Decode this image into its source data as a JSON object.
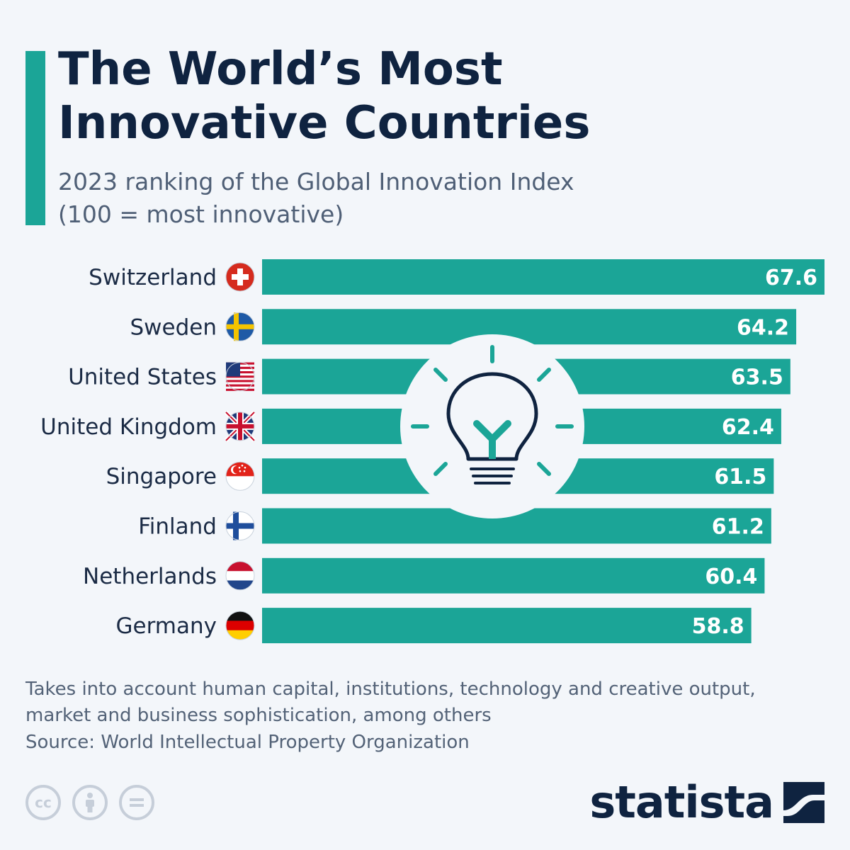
{
  "header": {
    "title_line1": "The World’s Most",
    "title_line2": "Innovative Countries",
    "subtitle_line1": "2023 ranking of the Global Innovation Index",
    "subtitle_line2": "(100 = most innovative)"
  },
  "chart_data": {
    "type": "bar",
    "orientation": "horizontal",
    "categories": [
      "Switzerland",
      "Sweden",
      "United States",
      "United Kingdom",
      "Singapore",
      "Finland",
      "Netherlands",
      "Germany"
    ],
    "values": [
      67.6,
      64.2,
      63.5,
      62.4,
      61.5,
      61.2,
      60.4,
      58.8
    ],
    "value_labels": [
      "67.6",
      "64.2",
      "63.5",
      "62.4",
      "61.5",
      "61.2",
      "60.4",
      "58.8"
    ],
    "xlim": [
      0,
      67.6
    ],
    "grid": false,
    "legend": "none",
    "flags": [
      "switzerland",
      "sweden",
      "united-states",
      "united-kingdom",
      "singapore",
      "finland",
      "netherlands",
      "germany"
    ]
  },
  "decoration": {
    "icon": "lightbulb-icon"
  },
  "footer": {
    "note_line1": "Takes into account human capital, institutions, technology and creative output,",
    "note_line2": "market and business sophistication, among others",
    "source": "Source: World Intellectual Property Organization",
    "brand": "statista",
    "license_icons": [
      "cc-icon",
      "attribution-icon",
      "no-derivatives-icon"
    ]
  },
  "colors": {
    "bar": "#1ba597",
    "title": "#0f2340",
    "subtitle": "#4f5f76",
    "text": "#1b2b45",
    "background": "#f3f6fa"
  }
}
